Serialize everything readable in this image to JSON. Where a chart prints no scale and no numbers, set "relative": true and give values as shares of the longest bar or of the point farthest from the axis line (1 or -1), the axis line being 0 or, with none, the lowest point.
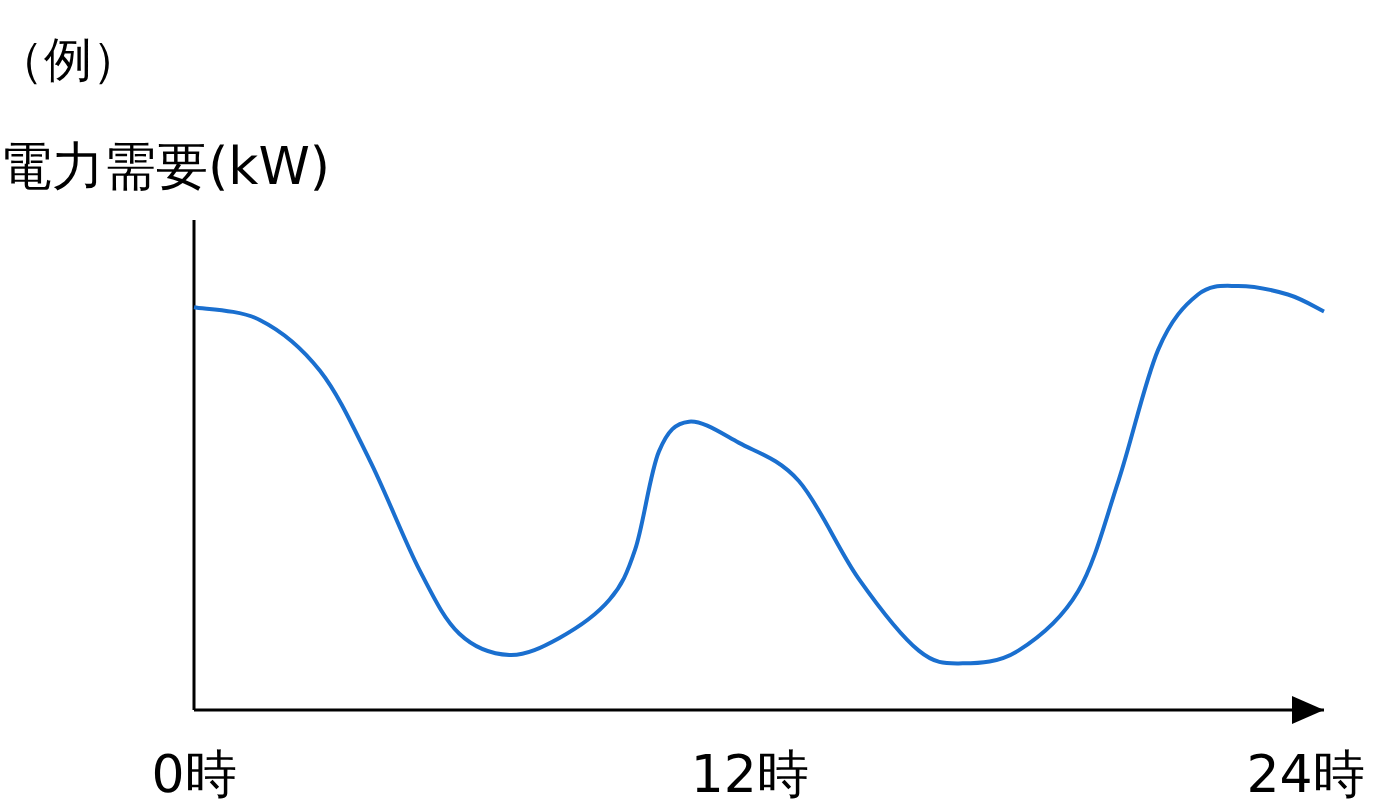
{
  "chart_data": {
    "type": "line",
    "title": "（例）",
    "ylabel": "電力需要(kW)",
    "relative": true,
    "tick_labels": "x",
    "grid": false,
    "marker": "none",
    "line_style": "solid",
    "xlim": [
      0,
      24.4
    ],
    "xticks": [
      {
        "value": 0,
        "label": "0時"
      },
      {
        "value": 12,
        "label": "12時"
      },
      {
        "value": 24,
        "label": "24時"
      }
    ],
    "x": [
      0,
      1.42,
      2.72,
      3.79,
      4.87,
      5.73,
      6.81,
      7.89,
      8.97,
      9.53,
      10.04,
      10.69,
      11.77,
      13.06,
      14.35,
      15.65,
      16.6,
      17.8,
      19.09,
      19.96,
      20.82,
      21.68,
      22.55,
      23.62,
      24.4
    ],
    "series": [
      {
        "color": "#1a6fcf",
        "values": [
          0.95,
          0.92,
          0.8,
          0.59,
          0.33,
          0.18,
          0.13,
          0.17,
          0.26,
          0.38,
          0.61,
          0.68,
          0.63,
          0.54,
          0.31,
          0.14,
          0.11,
          0.14,
          0.28,
          0.54,
          0.85,
          0.98,
          1,
          0.98,
          0.94
        ]
      }
    ]
  }
}
